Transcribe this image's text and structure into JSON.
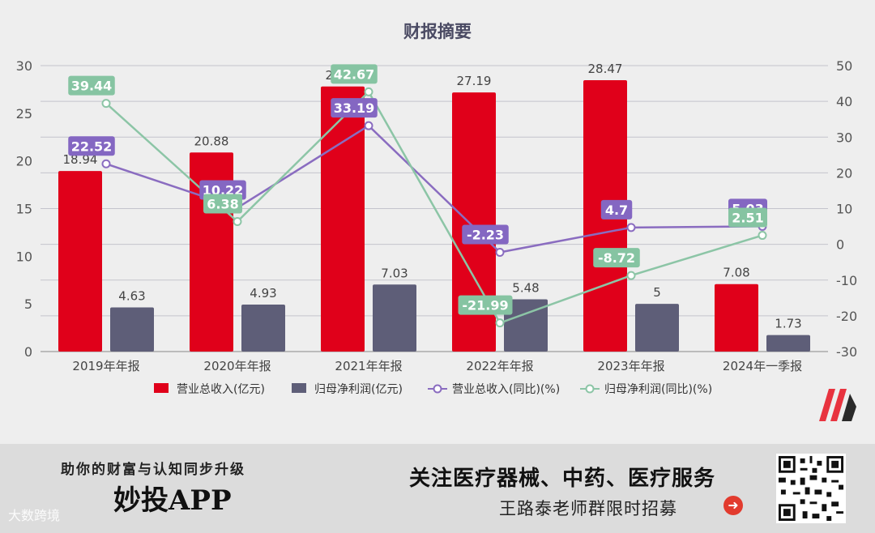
{
  "chart_data": {
    "type": "bar+line",
    "title": "财报摘要",
    "categories": [
      "2019年年报",
      "2020年年报",
      "2021年年报",
      "2022年年报",
      "2023年年报",
      "2024年一季报"
    ],
    "left_axis": {
      "ticks": [
        "0",
        "5",
        "10",
        "15",
        "20",
        "25",
        "30"
      ],
      "ylim": [
        0,
        30
      ]
    },
    "right_axis": {
      "ticks": [
        "-30",
        "-20",
        "-10",
        "0",
        "10",
        "20",
        "30",
        "40",
        "50"
      ],
      "ylim": [
        -30,
        50
      ]
    },
    "grid": true,
    "legend_position": "bottom",
    "series": [
      {
        "name": "营业总收入(亿元)",
        "kind": "bar",
        "axis": "left",
        "color": "#e0001a",
        "values": [
          18.94,
          20.88,
          27.81,
          27.19,
          28.47,
          7.08
        ],
        "labels": [
          "18.94",
          "20.88",
          "27.81",
          "27.19",
          "28.47",
          "7.08"
        ]
      },
      {
        "name": "归母净利润(亿元)",
        "kind": "bar",
        "axis": "left",
        "color": "#5e5e78",
        "values": [
          4.63,
          4.93,
          7.03,
          5.48,
          5,
          1.73
        ],
        "labels": [
          "4.63",
          "4.93",
          "7.03",
          "5.48",
          "5",
          "1.73"
        ]
      },
      {
        "name": "营业总收入(同比)(%)",
        "kind": "line",
        "axis": "right",
        "color": "#8a6cc0",
        "values": [
          22.52,
          10.22,
          33.19,
          -2.23,
          4.7,
          5.03
        ],
        "labels": [
          "22.52",
          "10.22",
          "33.19",
          "-2.23",
          "4.7",
          "5.03"
        ]
      },
      {
        "name": "归母净利润(同比)(%)",
        "kind": "line",
        "axis": "right",
        "color": "#8cc5a6",
        "values": [
          39.44,
          6.38,
          42.67,
          -21.99,
          -8.72,
          2.51
        ],
        "labels": [
          "39.44",
          "6.38",
          "42.67",
          "-21.99",
          "-8.72",
          "2.51"
        ]
      }
    ]
  },
  "footer": {
    "slogan": "助你的财富与认知同步升级",
    "app_name": "妙投APP",
    "promo_title": "关注医疗器械、中药、医疗服务",
    "promo_sub": "王路泰老师群限时招募",
    "watermark": "大数跨境"
  },
  "icons": {
    "promo_arrow": "arrow-right-circle-icon",
    "logo": "brand-logo-icon",
    "qr": "qr-code"
  }
}
